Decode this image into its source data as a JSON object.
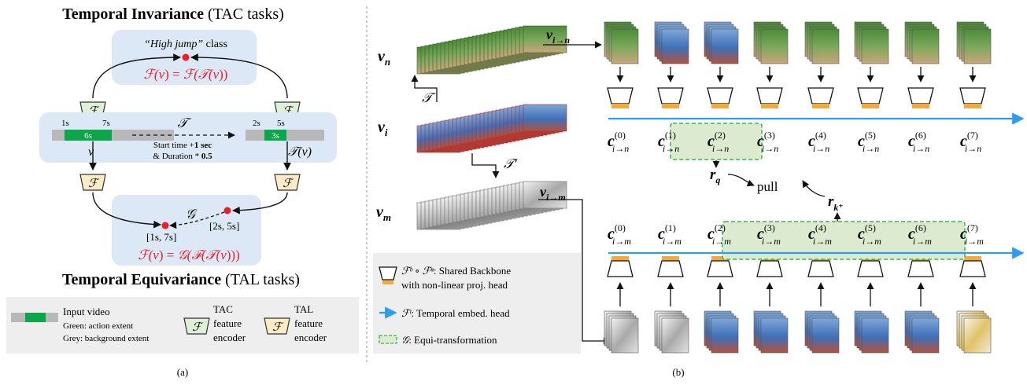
{
  "panel_a": {
    "title_top_bold": "Temporal Invariance",
    "title_top_rest": " (TAC tasks)",
    "title_bottom_bold": "Temporal Equivariance",
    "title_bottom_rest": " (TAL tasks)",
    "class_label_quote": "“High jump”",
    "class_label_rest": " class",
    "eq_invariance": "ℱ(υ) = ℱ(Ť(υ))",
    "eq_equivariance": "ℱ(υ) = ɢ(ℱ(Ť(υ)))",
    "encoder_symbol": "ℱ",
    "transform_symbol": "𝒯",
    "v_label": "υ",
    "tv_label": "𝒯(υ)",
    "g_label": "𝒢",
    "bar_left": {
      "t1": "1s",
      "t2": "7s",
      "mid": "6s"
    },
    "bar_right": {
      "t1": "2s",
      "t2": "5s",
      "mid": "3s"
    },
    "transform_text_1": "Start time +",
    "transform_text_1b": "1 sec",
    "transform_text_2": "& Duration * ",
    "transform_text_2b": "0.5",
    "interval_left": "[1s, 7s]",
    "interval_right": "[2s, 5s]",
    "legend": {
      "input_video": "Input video",
      "green_desc": "Green: action extent",
      "grey_desc": "Grey: background extent",
      "tac_l1": "TAC",
      "tac_l2": "feature",
      "tac_l3": "encoder",
      "tal_l1": "TAL",
      "tal_l2": "feature",
      "tal_l3": "encoder"
    },
    "caption": "(a)"
  },
  "panel_b": {
    "v_n": "v",
    "v_n_sub": "n",
    "v_i": "v",
    "v_i_sub": "i",
    "v_m": "v",
    "v_m_sub": "m",
    "v_in": "v",
    "v_in_sub": "i→n",
    "v_im": "v",
    "v_im_sub": "i→m",
    "T_symbol": "𝒯",
    "T_prime_symbol": "𝒯′",
    "c_top": [
      {
        "sup": "(0)",
        "sub": "i→n"
      },
      {
        "sup": "(1)",
        "sub": "i→n"
      },
      {
        "sup": "(2)",
        "sub": "i→n"
      },
      {
        "sup": "(3)",
        "sub": "i→n"
      },
      {
        "sup": "(4)",
        "sub": "i→n"
      },
      {
        "sup": "(5)",
        "sub": "i→n"
      },
      {
        "sup": "(6)",
        "sub": "i→n"
      },
      {
        "sup": "(7)",
        "sub": "i→n"
      }
    ],
    "c_bottom": [
      {
        "sup": "(0)",
        "sub": "i→m"
      },
      {
        "sup": "(1)",
        "sub": "i→m"
      },
      {
        "sup": "(2)",
        "sub": "i→m"
      },
      {
        "sup": "(3)",
        "sub": "i→m"
      },
      {
        "sup": "(4)",
        "sub": "i→m"
      },
      {
        "sup": "(5)",
        "sub": "i→m"
      },
      {
        "sup": "(6)",
        "sub": "i→m"
      },
      {
        "sup": "(7)",
        "sub": "i→m"
      }
    ],
    "c_letter": "c",
    "r_q": "r",
    "r_q_sub": "q",
    "r_k": "r",
    "r_k_sub": "k⁺",
    "pull": "pull",
    "legend": {
      "backbone_sym": "ℱᵇ ∘ ℱⁿ",
      "backbone_l1": ": Shared Backbone",
      "backbone_l2": "with non-linear proj. head",
      "temporal_sym": "ℱᵗ",
      "temporal_text": ": Temporal embed. head",
      "equi_sym": "𝒢",
      "equi_text": ":  Equi-transformation"
    },
    "caption": "(b)"
  },
  "colors": {
    "panel_bg": "#dce8f5",
    "legend_bg": "#eeeeee",
    "action_green": "#0aa64a",
    "background_grey": "#b8b8b8",
    "tac_fill": "#dff0d8",
    "tal_fill": "#fdebc8",
    "equation_red": "#e8202a",
    "timeline_blue": "#2e9cf0",
    "head_orange": "#f4a93a",
    "equi_box_fill": "#dcebd0",
    "equi_box_stroke": "#3cb44b"
  }
}
